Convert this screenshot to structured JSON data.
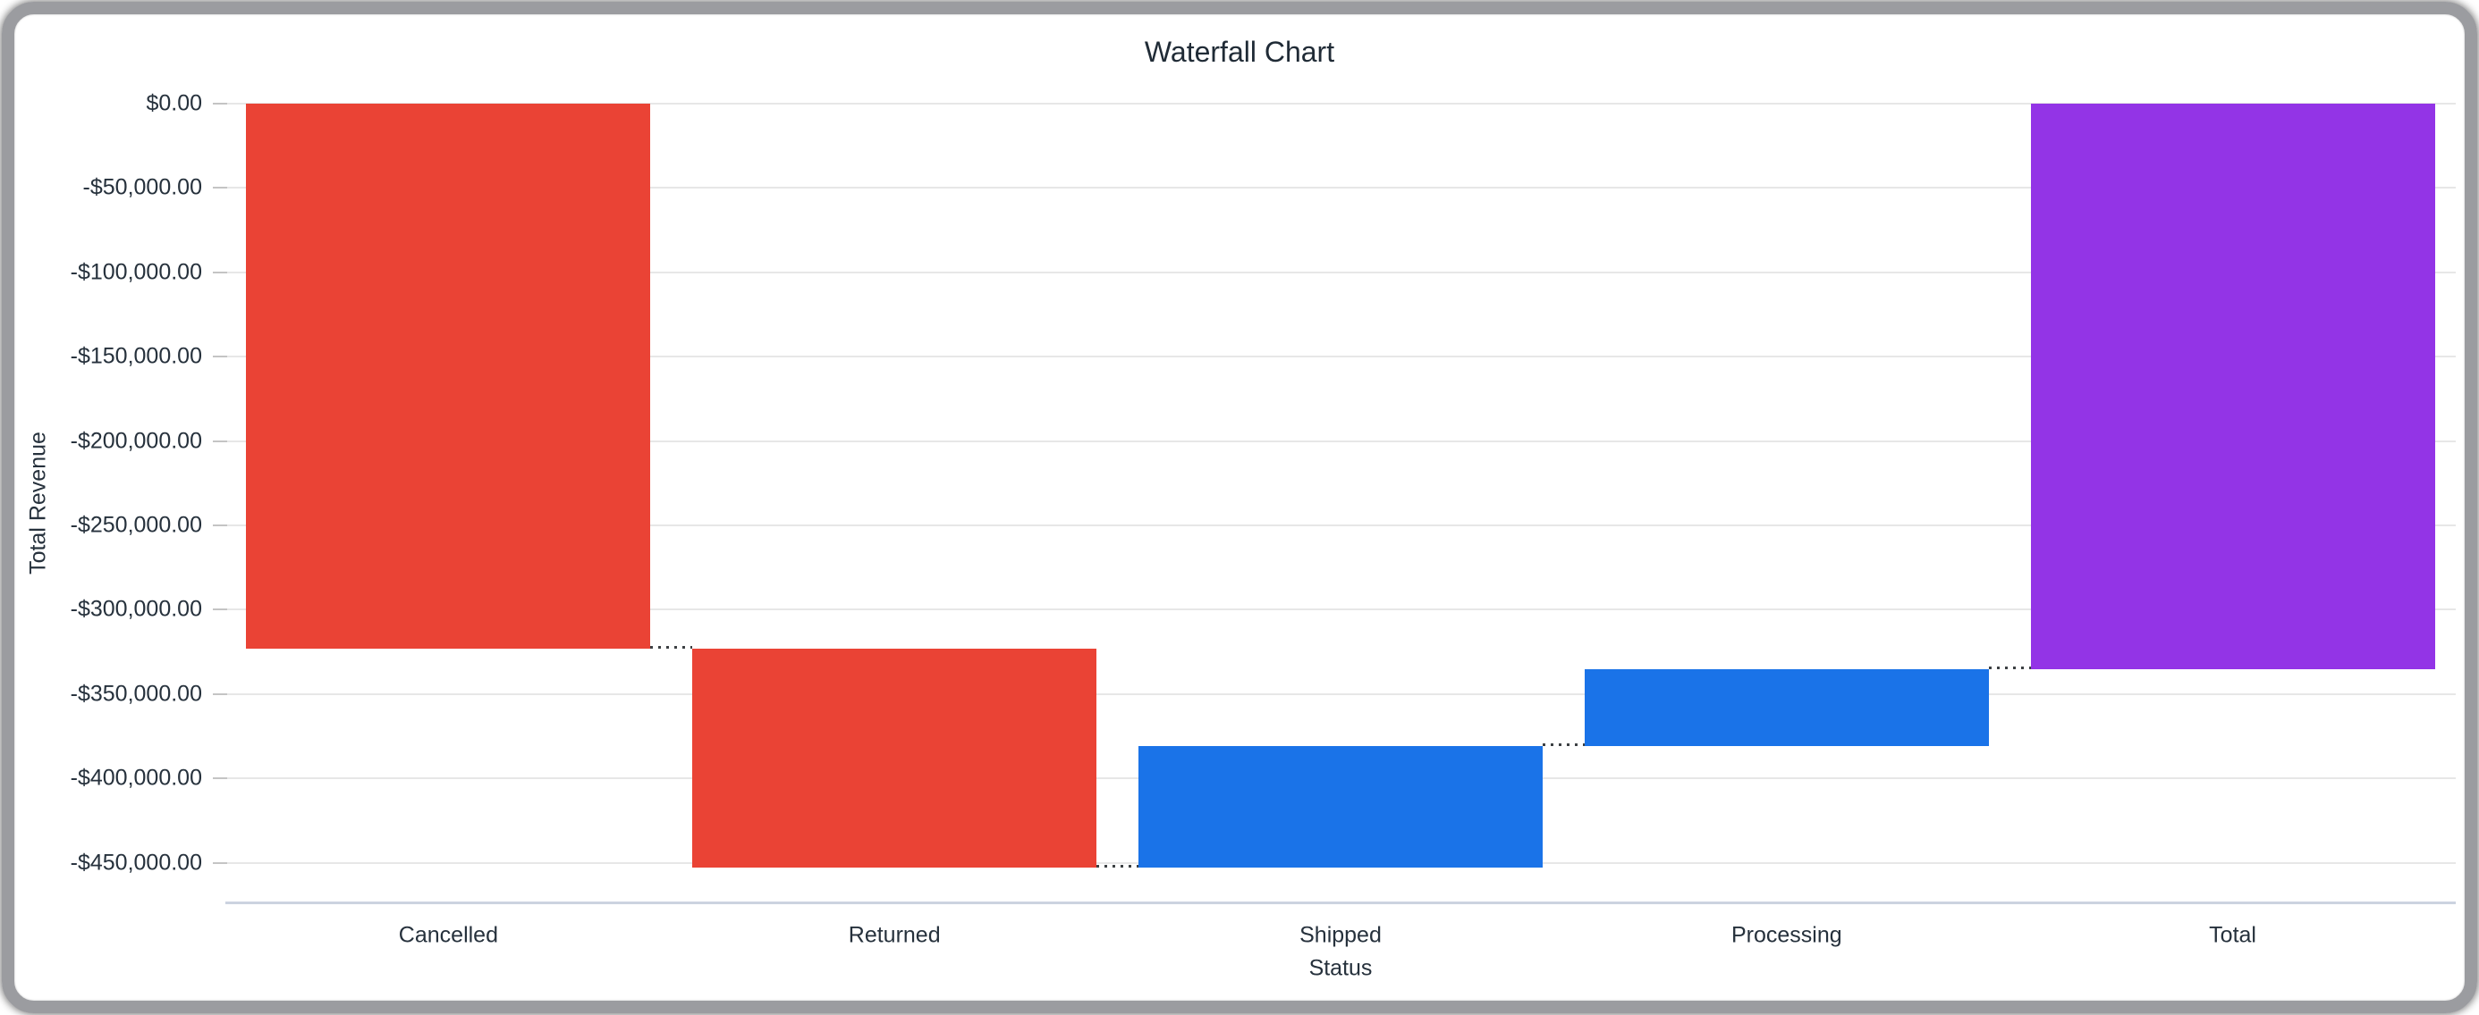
{
  "window": {
    "border_color": "#9b9ca0",
    "background": "#ffffff"
  },
  "chart_data": {
    "type": "waterfall",
    "title": "Waterfall Chart",
    "xlabel": "Status",
    "ylabel": "Total Revenue",
    "categories": [
      "Cancelled",
      "Returned",
      "Shipped",
      "Processing",
      "Total"
    ],
    "values": [
      -323000,
      -130000,
      72000,
      46000,
      -335000
    ],
    "bar_roles": [
      "decrease",
      "decrease",
      "increase",
      "increase",
      "total"
    ],
    "cumulative_levels": [
      -323000,
      -453000,
      -381000,
      -335000,
      -335000
    ],
    "y_ticks": [
      {
        "label": "$0.00",
        "value": 0
      },
      {
        "label": "-$50,000.00",
        "value": -50000
      },
      {
        "label": "-$100,000.00",
        "value": -100000
      },
      {
        "label": "-$150,000.00",
        "value": -150000
      },
      {
        "label": "-$200,000.00",
        "value": -200000
      },
      {
        "label": "-$250,000.00",
        "value": -250000
      },
      {
        "label": "-$300,000.00",
        "value": -300000
      },
      {
        "label": "-$350,000.00",
        "value": -350000
      },
      {
        "label": "-$400,000.00",
        "value": -400000
      },
      {
        "label": "-$450,000.00",
        "value": -450000
      }
    ],
    "ylim": [
      -473500,
      0
    ],
    "grid": true,
    "legend": "none",
    "connector_style": "dotted",
    "colors": {
      "decrease": "#EA4335",
      "increase": "#1A73E8",
      "total": "#9334E6",
      "gridline": "#e7e7e7",
      "tick": "#c4c4c4",
      "axis_line": "#ccd3e0",
      "connector": "#3c4043",
      "text": "#26313c",
      "title_text": "#202b36"
    }
  }
}
